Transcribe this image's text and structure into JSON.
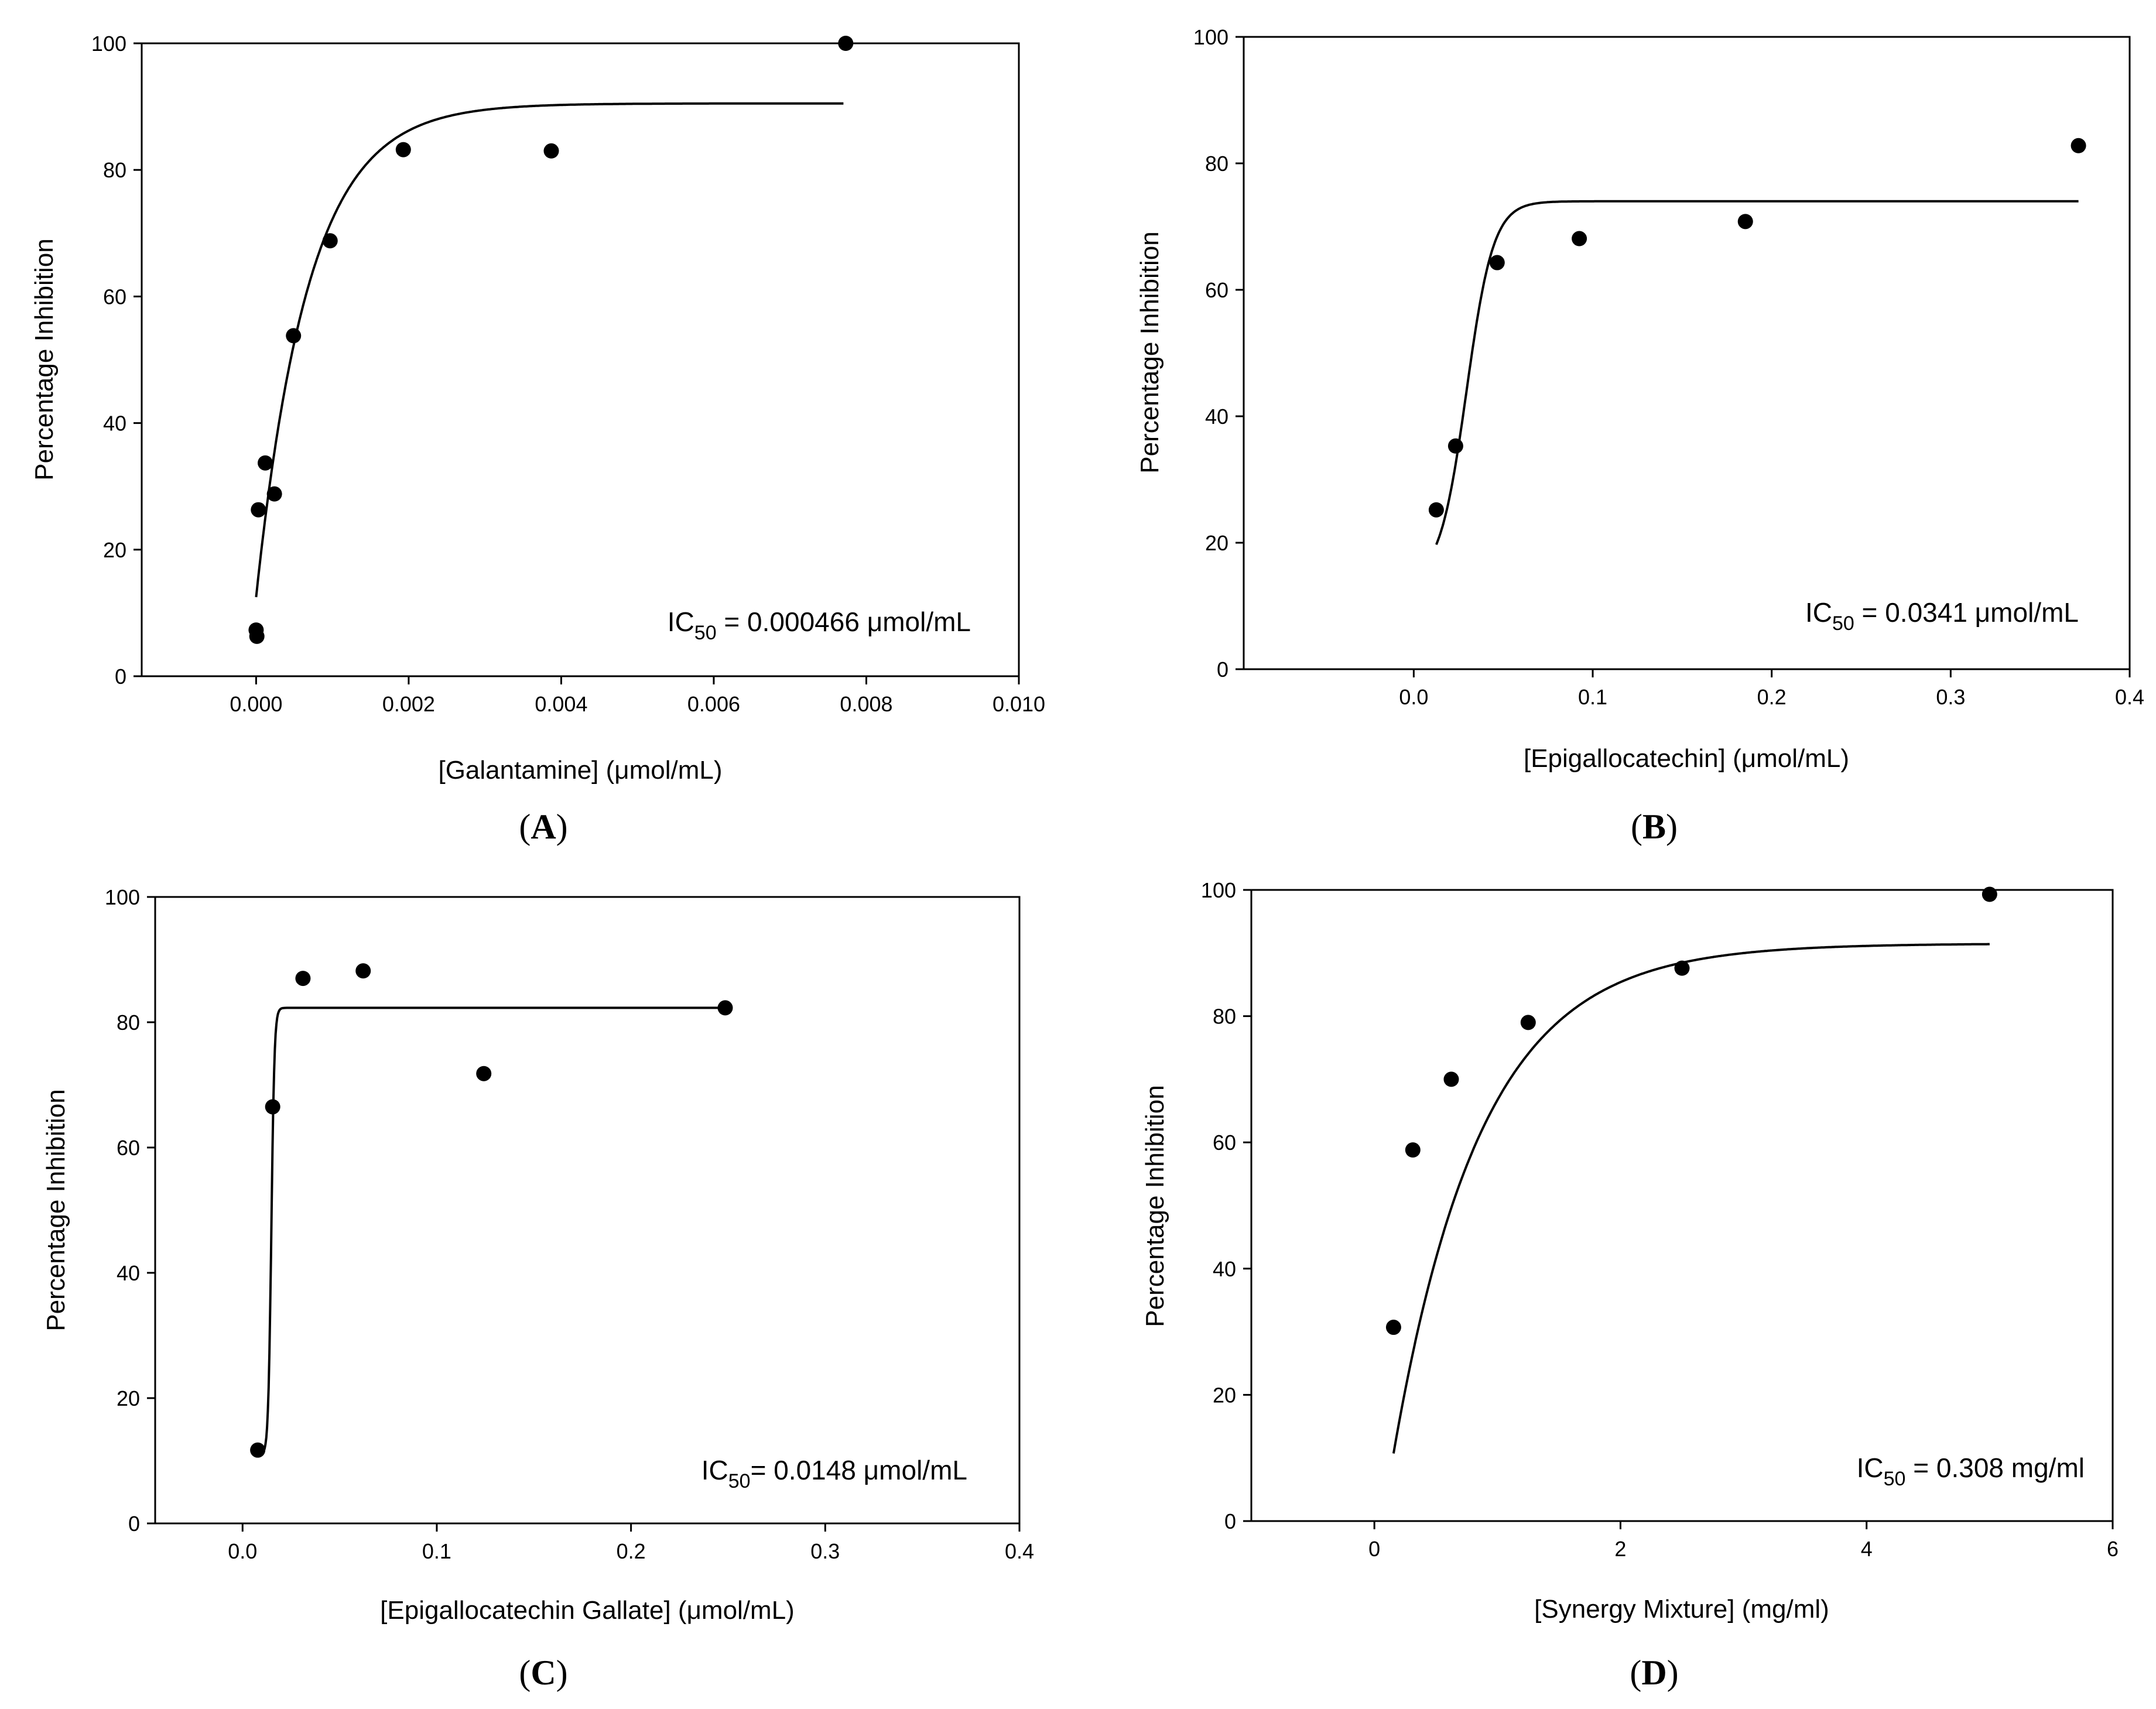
{
  "figure": {
    "panels": [
      {
        "id": "A",
        "label_open": "(",
        "label_letter": "A",
        "label_close": ")",
        "annotation_prefix": "IC",
        "annotation_sub": "50",
        "annotation_rest": " = 0.000466 μmol/mL"
      },
      {
        "id": "B",
        "label_open": "(",
        "label_letter": "B",
        "label_close": ")",
        "annotation_prefix": "IC",
        "annotation_sub": "50",
        "annotation_rest": " = 0.0341 μmol/mL"
      },
      {
        "id": "C",
        "label_open": "(",
        "label_letter": "C",
        "label_close": ")",
        "annotation_prefix": "IC",
        "annotation_sub": "50",
        "annotation_rest": "= 0.0148 μmol/mL"
      },
      {
        "id": "D",
        "label_open": "(",
        "label_letter": "D",
        "label_close": ")",
        "annotation_prefix": "IC",
        "annotation_sub": "50",
        "annotation_rest": " = 0.308 mg/ml"
      }
    ]
  },
  "chart_data": [
    {
      "type": "scatter",
      "title": "",
      "xlabel": "[Galantamine] (μmol/mL)",
      "ylabel": "Percentage Inhibition",
      "xlim": [
        -0.0015,
        0.01
      ],
      "ylim": [
        0,
        100
      ],
      "xticks": [
        0.0,
        0.002,
        0.004,
        0.006,
        0.008,
        0.01
      ],
      "xtick_labels": [
        "0.000",
        "0.002",
        "0.004",
        "0.006",
        "0.008",
        "0.010"
      ],
      "yticks": [
        0,
        20,
        40,
        60,
        80,
        100
      ],
      "ytick_labels": [
        "0",
        "20",
        "40",
        "60",
        "80",
        "100"
      ],
      "points": {
        "x": [
          0.0,
          1e-05,
          3e-05,
          0.00012,
          0.00024,
          0.00049,
          0.00097,
          0.00193,
          0.00387,
          0.00773
        ],
        "y": [
          7.3,
          6.3,
          26.3,
          33.7,
          28.8,
          53.8,
          68.8,
          83.2,
          83.0,
          100.0
        ]
      },
      "fit": {
        "model": "exponential_rise",
        "y0": 12.5,
        "a": 78.0,
        "b": 1450,
        "x_start": 0.0,
        "x_end": 0.0077
      }
    },
    {
      "type": "scatter",
      "title": "",
      "xlabel": "[Epigallocatechin] (μmol/mL)",
      "ylabel": "Percentage Inhibition",
      "xlim": [
        -0.095,
        0.4
      ],
      "ylim": [
        0,
        100
      ],
      "xticks": [
        0.0,
        0.1,
        0.2,
        0.3,
        0.4
      ],
      "xtick_labels": [
        "0.0",
        "0.1",
        "0.2",
        "0.3",
        "0.4"
      ],
      "yticks": [
        0,
        20,
        40,
        60,
        80,
        100
      ],
      "ytick_labels": [
        "0",
        "20",
        "40",
        "60",
        "80",
        "100"
      ],
      "points": {
        "x": [
          0.0126,
          0.0234,
          0.0466,
          0.0925,
          0.1853,
          0.3714
        ],
        "y": [
          25.2,
          35.3,
          64.3,
          68.1,
          70.8,
          82.8
        ]
      },
      "fit": {
        "model": "sigmoid",
        "y0": 14.0,
        "a": 60.0,
        "x0": 0.0295,
        "b": 0.0075,
        "x_start": 0.0126,
        "x_end": 0.3714
      }
    },
    {
      "type": "scatter",
      "title": "",
      "xlabel": "[Epigallocatechin Gallate] (μmol/mL)",
      "ylabel": "Percentage Inhibition",
      "xlim": [
        -0.045,
        0.4
      ],
      "ylim": [
        0,
        100
      ],
      "xticks": [
        0.0,
        0.1,
        0.2,
        0.3,
        0.4
      ],
      "xtick_labels": [
        "0.0",
        "0.1",
        "0.2",
        "0.3",
        "0.4"
      ],
      "yticks": [
        0,
        20,
        40,
        60,
        80,
        100
      ],
      "ytick_labels": [
        "0",
        "20",
        "40",
        "60",
        "80",
        "100"
      ],
      "points": {
        "x": [
          0.0078,
          0.0155,
          0.0311,
          0.0621,
          0.1242,
          0.2485
        ],
        "y": [
          11.7,
          66.5,
          87.0,
          88.2,
          71.8,
          82.3
        ]
      },
      "fit": {
        "model": "sigmoid",
        "y0": 11.0,
        "a": 71.3,
        "x0": 0.0148,
        "b": 0.0008,
        "x_start": 0.0078,
        "x_end": 0.2485
      }
    },
    {
      "type": "scatter",
      "title": "",
      "xlabel": "[Synergy Mixture] (mg/ml)",
      "ylabel": "Percentage Inhibition",
      "xlim": [
        -1.0,
        6.0
      ],
      "ylim": [
        0,
        100
      ],
      "xticks": [
        0,
        2,
        4,
        6
      ],
      "xtick_labels": [
        "0",
        "2",
        "4",
        "6"
      ],
      "yticks": [
        0,
        20,
        40,
        60,
        80,
        100
      ],
      "ytick_labels": [
        "0",
        "20",
        "40",
        "60",
        "80",
        "100"
      ],
      "points": {
        "x": [
          0.156,
          0.3125,
          0.625,
          1.25,
          2.5,
          5.0
        ],
        "y": [
          30.7,
          58.8,
          70.0,
          79.0,
          87.6,
          99.3
        ]
      },
      "fit": {
        "model": "exponential_rise",
        "y0": -9.0,
        "a": 100.5,
        "b": 1.4,
        "x_start": 0.156,
        "x_end": 5.0
      }
    }
  ]
}
